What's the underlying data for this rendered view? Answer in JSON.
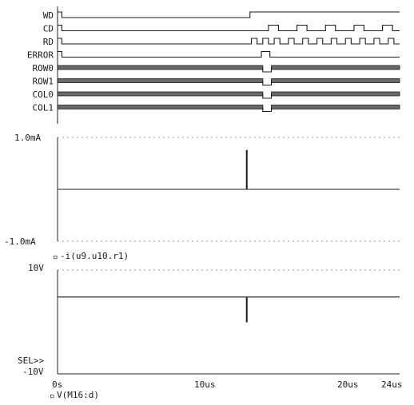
{
  "chart_data": [
    {
      "type": "digital_timing",
      "time_unit": "us",
      "xlim": [
        0,
        24
      ],
      "signals": [
        {
          "name": "WD",
          "kind": "line",
          "levels": [
            [
              0,
              1
            ],
            [
              0.3,
              0
            ],
            [
              13.5,
              1
            ]
          ]
        },
        {
          "name": "CD",
          "kind": "line",
          "levels": [
            [
              0,
              1
            ],
            [
              0.3,
              0
            ],
            [
              14.8,
              1
            ],
            [
              15.5,
              0
            ],
            [
              16.8,
              1
            ],
            [
              17.5,
              0
            ],
            [
              18.8,
              1
            ],
            [
              19.5,
              0
            ],
            [
              20.8,
              1
            ],
            [
              21.5,
              0
            ],
            [
              22.8,
              1
            ],
            [
              23.5,
              0
            ]
          ]
        },
        {
          "name": "RD",
          "kind": "line",
          "levels": [
            [
              0,
              1
            ],
            [
              0.3,
              0
            ],
            [
              13.6,
              1
            ],
            [
              14.0,
              0
            ],
            [
              14.4,
              1
            ],
            [
              14.8,
              0
            ],
            [
              15.2,
              1
            ],
            [
              15.6,
              0
            ],
            [
              16.2,
              1
            ],
            [
              16.6,
              0
            ],
            [
              17.2,
              1
            ],
            [
              17.6,
              0
            ],
            [
              18.2,
              1
            ],
            [
              18.6,
              0
            ],
            [
              19.2,
              1
            ],
            [
              19.6,
              0
            ],
            [
              20.2,
              1
            ],
            [
              20.6,
              0
            ],
            [
              21.2,
              1
            ],
            [
              21.6,
              0
            ],
            [
              22.2,
              1
            ],
            [
              22.6,
              0
            ],
            [
              23.2,
              1
            ],
            [
              23.6,
              0
            ]
          ]
        },
        {
          "name": "ERROR",
          "kind": "line",
          "levels": [
            [
              0,
              1
            ],
            [
              0.3,
              0
            ],
            [
              14.3,
              1
            ],
            [
              14.9,
              0
            ]
          ]
        },
        {
          "name": "ROW0",
          "kind": "bus",
          "gap": [
            14.4,
            15.0
          ]
        },
        {
          "name": "ROW1",
          "kind": "bus",
          "gap": [
            14.4,
            15.0
          ]
        },
        {
          "name": "COL0",
          "kind": "bus",
          "gap": [
            14.4,
            15.0
          ]
        },
        {
          "name": "COL1",
          "kind": "bus",
          "gap": [
            14.4,
            15.0
          ]
        }
      ]
    },
    {
      "type": "line",
      "series": [
        {
          "name": "-i(u9.u10.r1)",
          "x": [
            0,
            13.25,
            13.25,
            13.3,
            13.3,
            24
          ],
          "y": [
            0,
            0,
            0.75,
            0.75,
            0,
            0
          ]
        }
      ],
      "ylim": [
        -1.0,
        1.0
      ],
      "yticks": [
        "1.0mA",
        "-1.0mA"
      ],
      "xlim": [
        0,
        24
      ]
    },
    {
      "type": "line",
      "series": [
        {
          "name": "V(M16:d)",
          "x": [
            0,
            13.25,
            13.25,
            13.3,
            13.3,
            24
          ],
          "y": [
            4.8,
            4.8,
            0,
            0,
            4.8,
            4.8
          ]
        }
      ],
      "ylim": [
        -10,
        10
      ],
      "yticks": [
        "10V",
        "-10V"
      ],
      "xlim": [
        0,
        24
      ],
      "xticks": [
        "0s",
        "10us",
        "20us",
        "24us"
      ]
    }
  ],
  "labels": {
    "marker": "SEL>>",
    "trace1": "-i(u9.u10.r1)",
    "trace2": "V(M16:d)",
    "y1_top": "1.0mA",
    "y1_bottom": "-1.0mA",
    "y2_top": "10V",
    "y2_bottom": "-10V",
    "x_ticks": [
      "0s",
      "10us",
      "20us",
      "24us"
    ]
  }
}
